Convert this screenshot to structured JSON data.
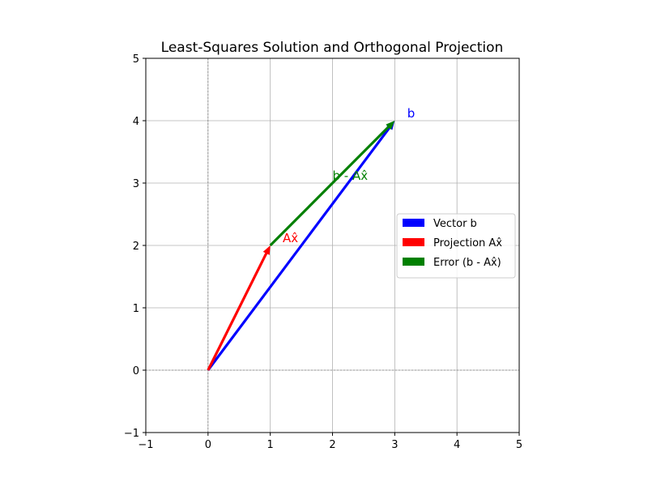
{
  "chart_data": {
    "type": "vector",
    "title": "Least-Squares Solution and Orthogonal Projection",
    "xlabel": "",
    "ylabel": "",
    "xlim": [
      -1,
      5
    ],
    "ylim": [
      -1,
      5
    ],
    "xticks": [
      -1,
      0,
      1,
      2,
      3,
      4,
      5
    ],
    "yticks": [
      -1,
      0,
      1,
      2,
      3,
      4,
      5
    ],
    "xtick_labels": [
      "−1",
      "0",
      "1",
      "2",
      "3",
      "4",
      "5"
    ],
    "ytick_labels": [
      "−1",
      "0",
      "1",
      "2",
      "3",
      "4",
      "5"
    ],
    "grid": true,
    "reference_lines": {
      "x": 0,
      "y": 0
    },
    "legend_position": "center-right",
    "vectors": [
      {
        "name": "Vector b",
        "start": [
          0,
          0
        ],
        "end": [
          3,
          4
        ],
        "color": "#0000ff",
        "label": "b",
        "label_at": [
          3.2,
          4.05
        ]
      },
      {
        "name": "Projection Ax̂",
        "start": [
          0,
          0
        ],
        "end": [
          1,
          2
        ],
        "color": "#ff0000",
        "label": "Ax̂",
        "label_at": [
          1.2,
          2.05
        ]
      },
      {
        "name": "Error (b - Ax̂)",
        "start": [
          1,
          2
        ],
        "end": [
          3,
          4
        ],
        "color": "#008000",
        "label": "b - Ax̂",
        "label_at": [
          2.0,
          3.05
        ]
      }
    ]
  }
}
